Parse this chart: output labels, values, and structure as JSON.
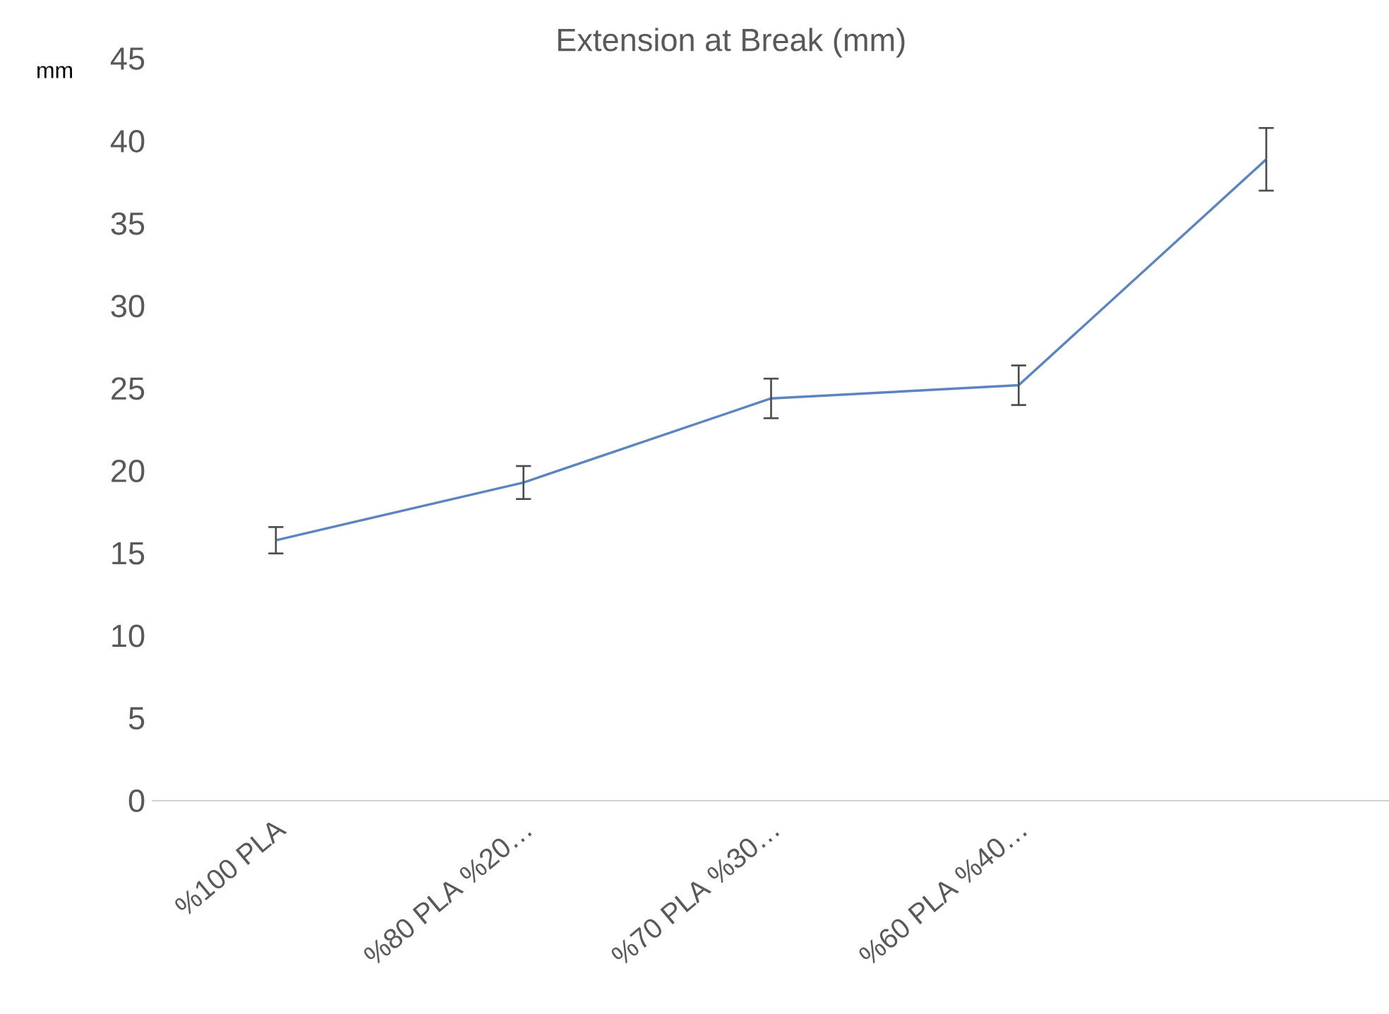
{
  "chart_data": {
    "type": "line",
    "title": "Extension at Break  (mm)",
    "ylabel": "mm",
    "categories": [
      "%100 PLA",
      "%80 PLA %20…",
      "%70 PLA %30…",
      "%60 PLA %40…",
      null
    ],
    "values": [
      15.8,
      19.3,
      24.4,
      25.2,
      38.9
    ],
    "errors": [
      0.8,
      1.0,
      1.2,
      1.2,
      1.9
    ],
    "color": "#5b85c0",
    "ylim": [
      0,
      45
    ],
    "yticks": [
      0,
      5,
      10,
      15,
      20,
      25,
      30,
      35,
      40,
      45
    ],
    "marker": "none",
    "line_style": "solid"
  }
}
